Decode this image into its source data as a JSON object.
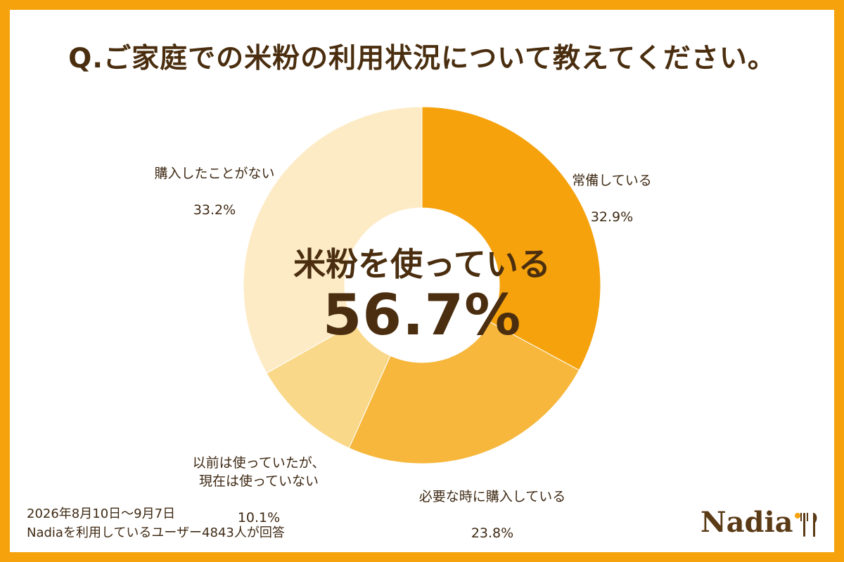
{
  "title": "Q.ご家庭での米粉の利用状況について教えてください。",
  "center": {
    "text": "米粉を使っている",
    "value": "56.7%"
  },
  "footer": {
    "period": "2026年8月10日～9月7日",
    "respondents": "Nadiaを利用しているユーザー4843人が回答"
  },
  "logo": {
    "text": "Nadia"
  },
  "colors": {
    "frame": "#f5a20d",
    "text": "#4a2e0f"
  },
  "chart_data": {
    "type": "pie",
    "title": "Q.ご家庭での米粉の利用状況について教えてください。",
    "categories": [
      "常備している",
      "必要な時に購入している",
      "以前は使っていたが、現在は使っていない",
      "購入したことがない"
    ],
    "values": [
      32.9,
      23.8,
      10.1,
      33.2
    ],
    "value_labels": [
      "32.9%",
      "23.8%",
      "10.1%",
      "33.2%"
    ],
    "colors": [
      "#f5a20d",
      "#f6b73c",
      "#fad889",
      "#fdebc6"
    ],
    "donut": true,
    "legend": "none"
  }
}
